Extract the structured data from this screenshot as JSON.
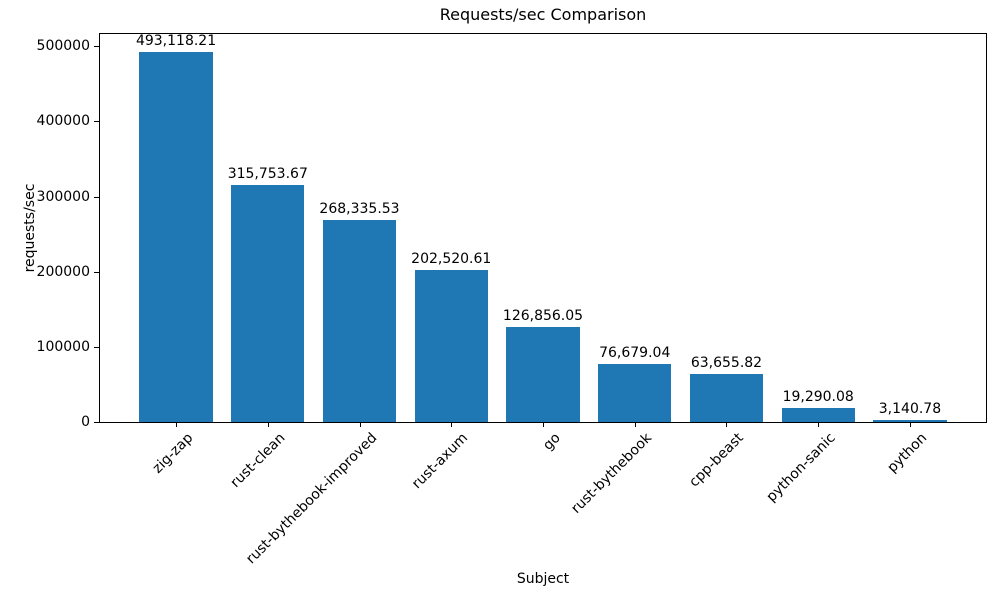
{
  "chart_data": {
    "type": "bar",
    "title": "Requests/sec Comparison",
    "xlabel": "Subject",
    "ylabel": "requests/sec",
    "categories": [
      "zig-zap",
      "rust-clean",
      "rust-bythebook-improved",
      "rust-axum",
      "go",
      "rust-bythebook",
      "cpp-beast",
      "python-sanic",
      "python"
    ],
    "values": [
      493118.21,
      315753.67,
      268335.53,
      202520.61,
      126856.05,
      76679.04,
      63655.82,
      19290.08,
      3140.78
    ],
    "value_labels": [
      "493,118.21",
      "315,753.67",
      "268,335.53",
      "202,520.61",
      "126,856.05",
      "76,679.04",
      "63,655.82",
      "19,290.08",
      "3,140.78"
    ],
    "yticks": [
      0,
      100000,
      200000,
      300000,
      400000,
      500000
    ],
    "ylim": [
      0,
      517774
    ],
    "xtick_rotation": 45,
    "bar_color": "#1f77b4",
    "axis_color": "#000000",
    "background_color": "#ffffff",
    "grid": false,
    "legend": "none"
  }
}
